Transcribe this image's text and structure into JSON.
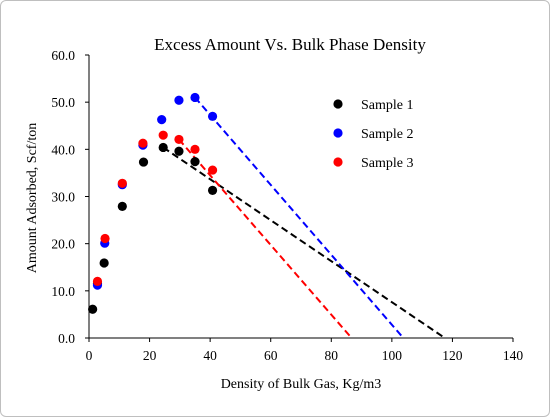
{
  "chart_data": {
    "type": "scatter",
    "title": "Excess Amount Vs. Bulk Phase Density",
    "xlabel": "Density of Bulk Gas, Kg/m3",
    "ylabel": "Amount Adsorbed, Scf/ton",
    "xlim": [
      0,
      140
    ],
    "ylim": [
      0,
      60
    ],
    "xticks": [
      0,
      20,
      40,
      60,
      80,
      100,
      120,
      140
    ],
    "xtick_labels": [
      "0",
      "20",
      "40",
      "60",
      "80",
      "100",
      "120",
      "140"
    ],
    "yticks": [
      0,
      10,
      20,
      30,
      40,
      50,
      60
    ],
    "ytick_labels": [
      "0.0",
      "10.0",
      "20.0",
      "30.0",
      "40.0",
      "50.0",
      "60.0"
    ],
    "grid": false,
    "legend": "right",
    "series": [
      {
        "name": "Sample 1",
        "color": "#000000",
        "x": [
          1.2,
          2.8,
          5.0,
          11.0,
          18.0,
          24.5,
          29.7,
          35.0,
          40.8
        ],
        "y": [
          6.1,
          11.5,
          15.9,
          27.9,
          37.3,
          40.4,
          39.6,
          37.4,
          31.3
        ],
        "trend": {
          "x": [
            24.5,
            117.5
          ],
          "y": [
            40.4,
            0
          ]
        }
      },
      {
        "name": "Sample 2",
        "color": "#0000ff",
        "x": [
          2.8,
          5.2,
          11.0,
          17.8,
          24.0,
          29.7,
          35.0,
          40.8
        ],
        "y": [
          11.2,
          20.1,
          32.5,
          40.9,
          46.3,
          50.4,
          51.0,
          47.0
        ],
        "trend": {
          "x": [
            35.0,
            103.8
          ],
          "y": [
            51.0,
            0
          ]
        }
      },
      {
        "name": "Sample 3",
        "color": "#ff0000",
        "x": [
          2.8,
          5.3,
          11.0,
          17.8,
          24.5,
          29.7,
          35.0,
          40.8
        ],
        "y": [
          12.0,
          21.1,
          32.8,
          41.3,
          43.0,
          42.1,
          40.0,
          35.6
        ],
        "trend": {
          "x": [
            29.7,
            86.7
          ],
          "y": [
            42.1,
            0
          ]
        }
      }
    ]
  }
}
